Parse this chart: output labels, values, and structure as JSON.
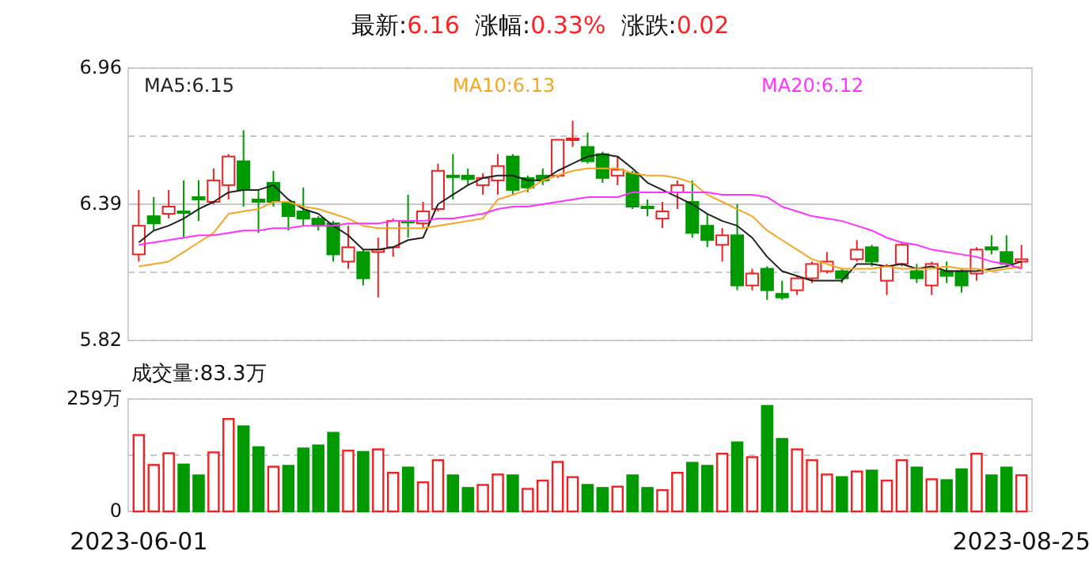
{
  "chart_data": [
    {
      "type": "candlestick",
      "title": "最新:6.16  涨幅:0.33%  涨跌:0.02",
      "categories": [
        null,
        null,
        null,
        null,
        null,
        null,
        null,
        null,
        null,
        null,
        null,
        null,
        null,
        null,
        null,
        null,
        null,
        null,
        null,
        null,
        null,
        null,
        null,
        null,
        null,
        null,
        null,
        null,
        null,
        null,
        null,
        null,
        null,
        null,
        null,
        null,
        null,
        null,
        null,
        null,
        null,
        null,
        null,
        null,
        null,
        null,
        null,
        null,
        null,
        null,
        null,
        null,
        null,
        null,
        null,
        null,
        null,
        null,
        null,
        null
      ],
      "ohlc": [
        [
          6.18,
          6.45,
          6.15,
          6.3
        ],
        [
          6.34,
          6.42,
          6.28,
          6.31
        ],
        [
          6.35,
          6.45,
          6.33,
          6.38
        ],
        [
          6.36,
          6.49,
          6.25,
          6.355
        ],
        [
          6.42,
          6.49,
          6.32,
          6.41
        ],
        [
          6.4,
          6.54,
          6.39,
          6.49
        ],
        [
          6.47,
          6.6,
          6.41,
          6.59
        ],
        [
          6.57,
          6.7,
          6.38,
          6.45
        ],
        [
          6.41,
          6.45,
          6.27,
          6.4
        ],
        [
          6.48,
          6.53,
          6.38,
          6.4
        ],
        [
          6.4,
          6.4,
          6.28,
          6.34
        ],
        [
          6.36,
          6.46,
          6.3,
          6.33
        ],
        [
          6.33,
          6.34,
          6.28,
          6.3
        ],
        [
          6.31,
          6.32,
          6.15,
          6.18
        ],
        [
          6.15,
          6.3,
          6.12,
          6.21
        ],
        [
          6.19,
          6.2,
          6.05,
          6.08
        ],
        [
          6.19,
          6.25,
          6.0,
          6.2
        ],
        [
          6.21,
          6.33,
          6.17,
          6.32
        ],
        [
          6.32,
          6.43,
          6.25,
          6.315
        ],
        [
          6.31,
          6.4,
          6.29,
          6.36
        ],
        [
          6.37,
          6.56,
          6.36,
          6.53
        ],
        [
          6.51,
          6.6,
          6.41,
          6.505
        ],
        [
          6.51,
          6.54,
          6.47,
          6.495
        ],
        [
          6.47,
          6.52,
          6.43,
          6.5
        ],
        [
          6.49,
          6.6,
          6.43,
          6.55
        ],
        [
          6.59,
          6.6,
          6.43,
          6.45
        ],
        [
          6.5,
          6.51,
          6.44,
          6.46
        ],
        [
          6.51,
          6.54,
          6.47,
          6.49
        ],
        [
          6.51,
          6.66,
          6.5,
          6.66
        ],
        [
          6.66,
          6.74,
          6.63,
          6.665
        ],
        [
          6.63,
          6.69,
          6.56,
          6.57
        ],
        [
          6.6,
          6.61,
          6.48,
          6.5
        ],
        [
          6.51,
          6.59,
          6.47,
          6.535
        ],
        [
          6.52,
          6.53,
          6.37,
          6.38
        ],
        [
          6.38,
          6.41,
          6.34,
          6.375
        ],
        [
          6.33,
          6.4,
          6.29,
          6.36
        ],
        [
          6.44,
          6.49,
          6.37,
          6.47
        ],
        [
          6.4,
          6.49,
          6.25,
          6.27
        ],
        [
          6.3,
          6.35,
          6.21,
          6.24
        ],
        [
          6.22,
          6.29,
          6.15,
          6.26
        ],
        [
          6.26,
          6.39,
          6.03,
          6.05
        ],
        [
          6.05,
          6.12,
          6.03,
          6.1
        ],
        [
          6.12,
          6.13,
          5.99,
          6.03
        ],
        [
          6.015,
          6.07,
          5.99,
          6.0
        ],
        [
          6.03,
          6.09,
          6.01,
          6.08
        ],
        [
          6.08,
          6.15,
          6.06,
          6.14
        ],
        [
          6.11,
          6.19,
          6.1,
          6.15
        ],
        [
          6.11,
          6.12,
          6.06,
          6.08
        ],
        [
          6.16,
          6.24,
          6.15,
          6.2
        ],
        [
          6.21,
          6.22,
          6.13,
          6.15
        ],
        [
          6.07,
          6.14,
          6.01,
          6.13
        ],
        [
          6.14,
          6.23,
          6.13,
          6.22
        ],
        [
          6.11,
          6.14,
          6.06,
          6.08
        ],
        [
          6.05,
          6.15,
          6.01,
          6.14
        ],
        [
          6.11,
          6.15,
          6.06,
          6.09
        ],
        [
          6.11,
          6.12,
          6.02,
          6.05
        ],
        [
          6.1,
          6.21,
          6.07,
          6.2
        ],
        [
          6.21,
          6.26,
          6.18,
          6.2
        ],
        [
          6.19,
          6.26,
          6.13,
          6.14
        ],
        [
          6.15,
          6.22,
          6.12,
          6.16
        ]
      ],
      "series": [
        {
          "type": "line",
          "name": "MA5:6.15",
          "color": "#222222",
          "values": [
            6.23,
            6.28,
            6.3,
            6.33,
            6.37,
            6.4,
            6.44,
            6.45,
            6.45,
            6.47,
            6.41,
            6.37,
            6.35,
            6.3,
            6.26,
            6.2,
            6.2,
            6.21,
            6.24,
            6.25,
            6.39,
            6.43,
            6.47,
            6.5,
            6.51,
            6.51,
            6.49,
            6.49,
            6.53,
            6.56,
            6.59,
            6.6,
            6.59,
            6.54,
            6.48,
            6.45,
            6.42,
            6.39,
            6.35,
            6.32,
            6.3,
            6.25,
            6.17,
            6.11,
            6.09,
            6.07,
            6.07,
            6.07,
            6.14,
            6.14,
            6.13,
            6.14,
            6.12,
            6.13,
            6.11,
            6.11,
            6.11,
            6.12,
            6.13,
            6.15
          ]
        },
        {
          "type": "line",
          "name": "MA10:6.13",
          "color": "#f5a623",
          "values": [
            6.13,
            6.14,
            6.15,
            6.19,
            6.23,
            6.27,
            6.35,
            6.36,
            6.37,
            6.4,
            6.4,
            6.38,
            6.37,
            6.35,
            6.33,
            6.3,
            6.29,
            6.29,
            6.29,
            6.29,
            6.3,
            6.31,
            6.32,
            6.33,
            6.41,
            6.43,
            6.45,
            6.49,
            6.51,
            6.53,
            6.54,
            6.54,
            6.54,
            6.52,
            6.51,
            6.51,
            6.5,
            6.48,
            6.43,
            6.4,
            6.37,
            6.34,
            6.28,
            6.24,
            6.2,
            6.16,
            6.14,
            6.12,
            6.12,
            6.12,
            6.13,
            6.12,
            6.12,
            6.12,
            6.13,
            6.12,
            6.12,
            6.11,
            6.12,
            6.13
          ]
        },
        {
          "type": "line",
          "name": "MA20:6.12",
          "color": "#ff33ff",
          "values": [
            6.22,
            6.23,
            6.24,
            6.25,
            6.26,
            6.26,
            6.27,
            6.28,
            6.28,
            6.29,
            6.29,
            6.3,
            6.3,
            6.3,
            6.31,
            6.31,
            6.31,
            6.32,
            6.32,
            6.32,
            6.33,
            6.33,
            6.34,
            6.35,
            6.37,
            6.38,
            6.38,
            6.39,
            6.4,
            6.41,
            6.42,
            6.42,
            6.42,
            6.44,
            6.44,
            6.44,
            6.44,
            6.44,
            6.44,
            6.43,
            6.43,
            6.43,
            6.42,
            6.38,
            6.36,
            6.34,
            6.33,
            6.32,
            6.3,
            6.28,
            6.25,
            6.23,
            6.22,
            6.2,
            6.19,
            6.18,
            6.17,
            6.15,
            6.14,
            6.12
          ]
        }
      ],
      "ylim": [
        5.82,
        6.96
      ],
      "yticks": [
        5.82,
        {
          "value": 6.105,
          "label": null
        },
        6.39,
        {
          "value": 6.675,
          "label": null
        },
        6.96
      ],
      "ref_lines": [
        {
          "axis": "y",
          "value": 6.39,
          "color": "#c8c8c8",
          "line_style": "solid"
        }
      ],
      "grid": true,
      "legend": "top",
      "tick_labels": "y"
    },
    {
      "type": "bar",
      "title": "成交量:83.3万",
      "categories": [
        "2023-06-01",
        null,
        null,
        null,
        null,
        null,
        null,
        null,
        null,
        null,
        null,
        null,
        null,
        null,
        null,
        null,
        null,
        null,
        null,
        null,
        null,
        null,
        null,
        null,
        null,
        null,
        null,
        null,
        null,
        null,
        null,
        null,
        null,
        null,
        null,
        null,
        null,
        null,
        null,
        null,
        null,
        null,
        null,
        null,
        null,
        null,
        null,
        null,
        null,
        null,
        null,
        null,
        null,
        null,
        null,
        null,
        null,
        null,
        null,
        "2023-08-25"
      ],
      "values": [
        176,
        107,
        134,
        108,
        83,
        136,
        213,
        196,
        148,
        103,
        105,
        145,
        152,
        181,
        140,
        137,
        143,
        89,
        101,
        67,
        118,
        83,
        54,
        61,
        85,
        83,
        52,
        71,
        114,
        79,
        61,
        54,
        57,
        83,
        54,
        49,
        89,
        112,
        105,
        133,
        159,
        125,
        243,
        167,
        143,
        118,
        85,
        79,
        92,
        94,
        71,
        118,
        101,
        74,
        72,
        97,
        133,
        83,
        101,
        83.3
      ],
      "colors": [
        "#ee2222",
        "#ee2222",
        "#ee2222",
        "#009900",
        "#009900",
        "#ee2222",
        "#ee2222",
        "#009900",
        "#009900",
        "#ee2222",
        "#009900",
        "#009900",
        "#009900",
        "#009900",
        "#ee2222",
        "#009900",
        "#ee2222",
        "#ee2222",
        "#009900",
        "#ee2222",
        "#ee2222",
        "#009900",
        "#009900",
        "#ee2222",
        "#ee2222",
        "#009900",
        "#ee2222",
        "#ee2222",
        "#ee2222",
        "#ee2222",
        "#009900",
        "#009900",
        "#ee2222",
        "#009900",
        "#009900",
        "#ee2222",
        "#ee2222",
        "#009900",
        "#009900",
        "#ee2222",
        "#009900",
        "#ee2222",
        "#009900",
        "#009900",
        "#ee2222",
        "#ee2222",
        "#ee2222",
        "#009900",
        "#ee2222",
        "#009900",
        "#ee2222",
        "#ee2222",
        "#009900",
        "#ee2222",
        "#009900",
        "#009900",
        "#ee2222",
        "#009900",
        "#009900",
        "#ee2222"
      ],
      "ylim": [
        0,
        259
      ],
      "yticks": [
        0,
        {
          "value": 129.5,
          "label": null
        },
        {
          "value": 259,
          "label": "259万"
        }
      ],
      "grid": true
    }
  ]
}
